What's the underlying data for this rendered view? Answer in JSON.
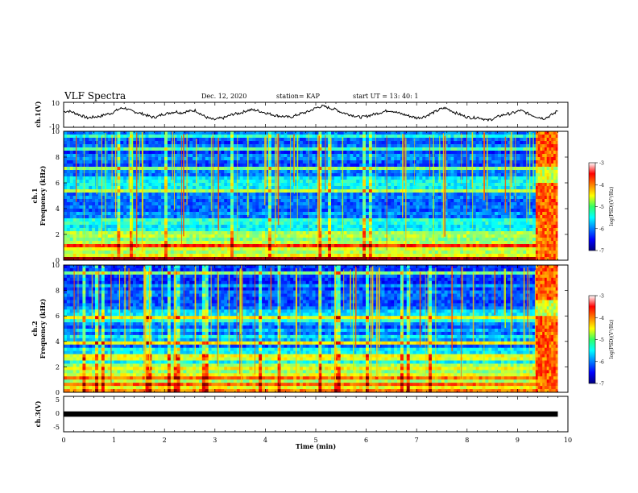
{
  "header": {
    "title": "VLF Spectra",
    "date": "Dec. 12, 2020",
    "station": "station= KAP",
    "start_time": "start  UT =   13: 40: 1"
  },
  "chart_data": [
    {
      "type": "line",
      "panel": "ch1-waveform",
      "ylabel": "ch.1(V)",
      "ylim": [
        -10,
        10
      ],
      "y_ticks": [
        "10",
        "-10"
      ],
      "x_range_min": [
        0,
        9.8
      ],
      "color": "#000000",
      "series": [
        {
          "values": [
            2.5,
            3.0,
            2.0,
            0.5,
            -1.0,
            -2.5,
            -2.0,
            -1.5,
            -1.0,
            0.5,
            1.0,
            3.0,
            5.0,
            5.5,
            3.5,
            2.5,
            1.5,
            0.5,
            -1.0,
            -2.0,
            -1.5,
            0.5,
            1.0,
            2.0,
            2.5,
            1.5,
            2.5,
            3.0,
            3.5,
            1.0,
            -1.5,
            -3.0,
            -4.0,
            -3.0,
            -2.5,
            -1.0,
            0.5,
            1.0,
            2.0,
            3.5,
            4.0,
            3.5,
            2.5,
            1.5,
            0.5,
            -0.5,
            -1.0,
            -1.5,
            -2.0,
            -1.0,
            0.5,
            1.5,
            2.5,
            4.5,
            6.0,
            7.0,
            6.0,
            5.0,
            4.0,
            2.0,
            1.0,
            0.0,
            -1.0,
            -2.0,
            -1.5,
            -0.5,
            0.5,
            1.5,
            2.5,
            3.5,
            3.0,
            1.5,
            0.5,
            -0.5,
            -1.5,
            -2.5,
            -2.0,
            -1.0,
            1.0,
            2.5,
            4.5,
            5.5,
            4.0,
            2.0,
            0.5,
            -1.0,
            -2.0,
            -2.5,
            -2.0,
            -3.0,
            -4.5,
            -3.5,
            -2.0,
            -0.5,
            0.5,
            1.0,
            2.0,
            3.5,
            2.0,
            0.5,
            -1.0,
            -2.0,
            -3.0,
            -1.5,
            0.5,
            3.5
          ]
        }
      ]
    },
    {
      "type": "heatmap",
      "panel": "ch1-spectrogram",
      "ylabel": "ch.1\nFrequency  (kHz)",
      "ylim": [
        0,
        10
      ],
      "y_ticks": [
        "0",
        "2",
        "4",
        "6",
        "8",
        "10"
      ],
      "colorbar": {
        "label": "log(PSD)(V²/Hz)",
        "ticks": [
          "-3",
          "-4",
          "-5",
          "-6",
          "-7"
        ],
        "range": [
          -7,
          -3
        ]
      },
      "x_range_min": [
        0,
        9.8
      ]
    },
    {
      "type": "heatmap",
      "panel": "ch2-spectrogram",
      "ylabel": "ch.2\nFrequency  (kHz)",
      "ylim": [
        0,
        10
      ],
      "y_ticks": [
        "0",
        "2",
        "4",
        "6",
        "8",
        "10"
      ],
      "colorbar": {
        "label": "log(PSD)(V²/Hz)",
        "ticks": [
          "-3",
          "-4",
          "-5",
          "-6",
          "-7"
        ],
        "range": [
          -7,
          -3
        ]
      },
      "x_range_min": [
        0,
        9.8
      ]
    },
    {
      "type": "line",
      "panel": "ch3-waveform",
      "ylabel": "ch.3(V)",
      "ylim": [
        -5,
        5
      ],
      "y_ticks": [
        "5",
        "0",
        "-5"
      ],
      "x_range_min": [
        0,
        9.8
      ],
      "series": [
        {
          "values": [
            -0.3,
            0.3
          ]
        }
      ]
    }
  ],
  "x_axis": {
    "label": "Time  (min)",
    "ticks": [
      "0",
      "1",
      "2",
      "3",
      "4",
      "5",
      "6",
      "7",
      "8",
      "9",
      "10"
    ],
    "range": [
      0,
      10
    ]
  }
}
